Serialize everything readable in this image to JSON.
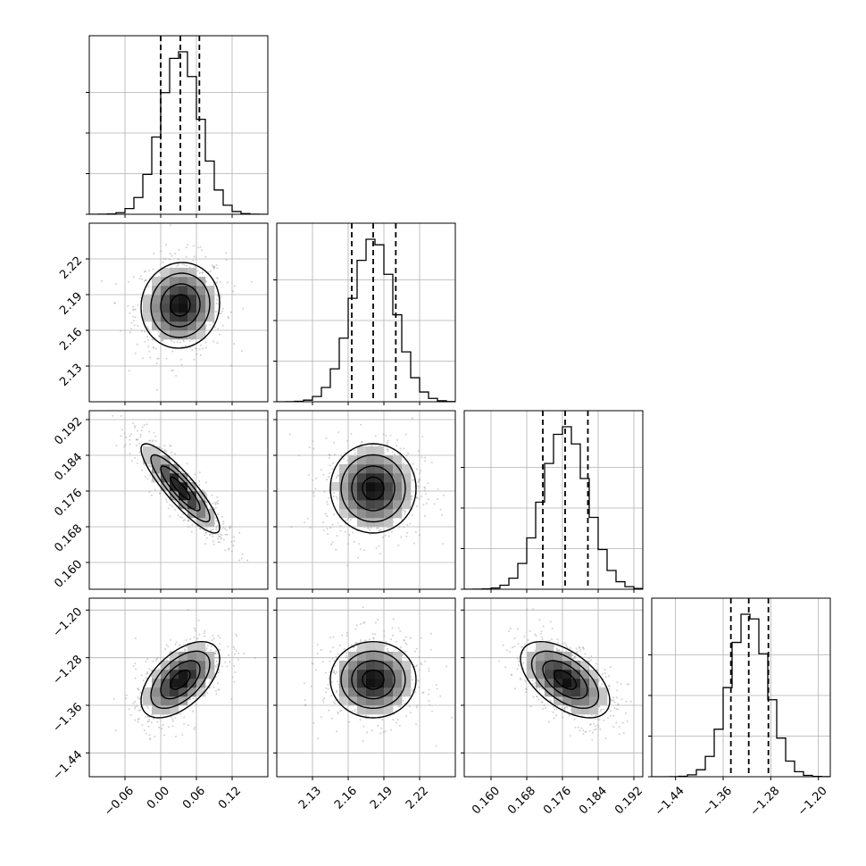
{
  "chart_data": {
    "type": "corner",
    "grid": true,
    "parameters": [
      {
        "range": [
          -0.12,
          0.18
        ],
        "ticks": [
          -0.06,
          0.0,
          0.06,
          0.12
        ],
        "tick_labels": [
          "−0.06",
          "0.00",
          "0.06",
          "0.12"
        ],
        "quantiles": [
          0.0,
          0.033,
          0.065
        ],
        "peak": 0.033,
        "sigma": 0.033
      },
      {
        "range": [
          2.1,
          2.25
        ],
        "ticks": [
          2.13,
          2.16,
          2.19,
          2.22
        ],
        "tick_labels": [
          "2.13",
          "2.16",
          "2.19",
          "2.22"
        ],
        "quantiles": [
          2.163,
          2.181,
          2.2
        ],
        "peak": 2.181,
        "sigma": 0.018
      },
      {
        "range": [
          0.154,
          0.194
        ],
        "ticks": [
          0.16,
          0.168,
          0.176,
          0.184,
          0.192
        ],
        "tick_labels": [
          "0.160",
          "0.168",
          "0.176",
          "0.184",
          "0.192"
        ],
        "quantiles": [
          0.1716,
          0.1766,
          0.1817
        ],
        "peak": 0.1766,
        "sigma": 0.005
      },
      {
        "range": [
          -1.48,
          -1.18
        ],
        "ticks": [
          -1.44,
          -1.36,
          -1.28,
          -1.2
        ],
        "tick_labels": [
          "−1.44",
          "−1.36",
          "−1.28",
          "−1.20"
        ],
        "quantiles": [
          -1.347,
          -1.317,
          -1.284
        ],
        "peak": -1.317,
        "sigma": 0.032
      }
    ],
    "correlations": {
      "1-0": 0.05,
      "2-0": -0.88,
      "2-1": 0.0,
      "3-0": 0.55,
      "3-1": 0.0,
      "3-2": -0.55
    },
    "histogram_bins": 20,
    "histogram_style": "step",
    "quantile_line_style": "dashed",
    "density_colormap": [
      "#ffffff",
      "#000000"
    ],
    "contour_levels": 3
  }
}
